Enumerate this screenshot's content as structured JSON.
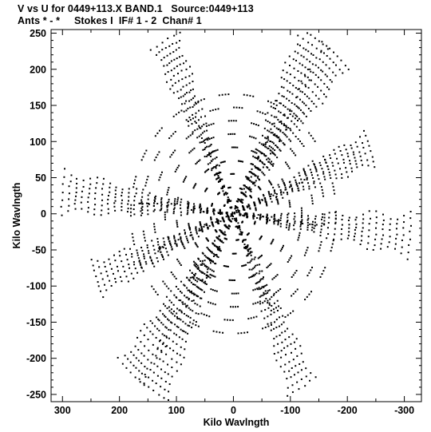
{
  "header": {
    "line1": "V vs U for 0449+113.X BAND.1   Source:0449+113",
    "line2": "Ants * - *     Stokes I  IF# 1 - 2  Chan# 1"
  },
  "chart_data": {
    "type": "scatter",
    "title": "V vs U for 0449+113.X BAND.1   Source:0449+113",
    "subtitle": "Ants * - *     Stokes I  IF# 1 - 2  Chan# 1",
    "xlabel": "Kilo Wavlngth",
    "ylabel": "Kilo Wavlngth",
    "xlim": [
      320,
      -330
    ],
    "ylim": [
      -260,
      255
    ],
    "x_reversed": true,
    "x_ticks": [
      300,
      200,
      100,
      0,
      -100,
      -200,
      -300
    ],
    "y_ticks": [
      250,
      200,
      150,
      100,
      50,
      0,
      -50,
      -100,
      -150,
      -200,
      -250
    ],
    "x_tick_labels": [
      "300",
      "200",
      "100",
      "0",
      "-100",
      "-200",
      "-300"
    ],
    "y_tick_labels": [
      "250",
      "200",
      "150",
      "100",
      "50",
      "0",
      "-50",
      "-100",
      "-150",
      "-200",
      "-250"
    ],
    "grid": false,
    "legend": "none",
    "marker_color": "#000000",
    "pattern": "uv-coverage",
    "baseline_arms": [
      {
        "name": "",
        "end_u": -140,
        "end_v": 245,
        "alt_end_u": 140,
        "alt_end_v": -245
      },
      {
        "name": "",
        "end_u": 120,
        "end_v": 240,
        "alt_end_u": -120,
        "alt_end_v": -240
      },
      {
        "name": "",
        "end_u": 300,
        "end_v": 30,
        "alt_end_u": -310,
        "alt_end_v": -30
      },
      {
        "name": "",
        "end_u": 180,
        "end_v": -220,
        "alt_end_u": -180,
        "alt_end_v": 220
      },
      {
        "name": "",
        "end_u": -240,
        "end_v": 90,
        "alt_end_u": 240,
        "alt_end_v": -90
      }
    ],
    "ring_radii": [
      20,
      40,
      60,
      80,
      100,
      120,
      140,
      160,
      180,
      200,
      220,
      240,
      260,
      280,
      300
    ]
  }
}
